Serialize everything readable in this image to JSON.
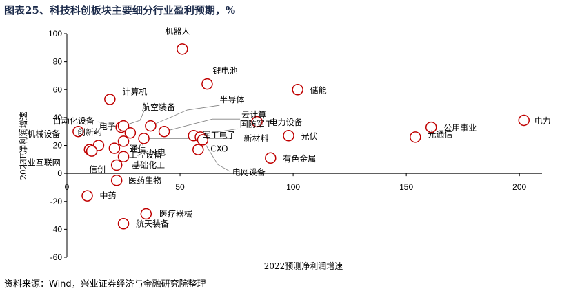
{
  "header": {
    "title": "图表25、科技科创板块主要细分行业盈利预期，%"
  },
  "footer": {
    "source": "资料来源：Wind，兴业证券经济与金融研究院整理"
  },
  "chart_data": {
    "type": "scatter",
    "title": "",
    "xlabel": "2022预测净利润增速",
    "ylabel": "2023E净利润增速",
    "xlim": [
      0,
      210
    ],
    "ylim": [
      -60,
      100
    ],
    "xticks": [
      0,
      50,
      100,
      150,
      200
    ],
    "yticks": [
      -60,
      -40,
      -20,
      0,
      20,
      40,
      60,
      80,
      100
    ],
    "grid": false,
    "marker_color": "#c00000",
    "points": [
      {
        "label": "机器人",
        "x": 51,
        "y": 89
      },
      {
        "label": "锂电池",
        "x": 62,
        "y": 64
      },
      {
        "label": "储能",
        "x": 102,
        "y": 60
      },
      {
        "label": "计算机",
        "x": 19,
        "y": 53
      },
      {
        "label": "电力",
        "x": 202,
        "y": 38
      },
      {
        "label": "电力设备",
        "x": 84,
        "y": 37
      },
      {
        "label": "公用事业",
        "x": 161,
        "y": 33
      },
      {
        "label": "光通信",
        "x": 154,
        "y": 26
      },
      {
        "label": "光伏",
        "x": 98,
        "y": 27
      },
      {
        "label": "自动化设备",
        "x": 24,
        "y": 33
      },
      {
        "label": "航空装备",
        "x": 25,
        "y": 34
      },
      {
        "label": "半导体",
        "x": 37,
        "y": 34
      },
      {
        "label": "云计算",
        "x": 43,
        "y": 30
      },
      {
        "label": "国防军工",
        "x": 56,
        "y": 27
      },
      {
        "label": "军工电子",
        "x": 59,
        "y": 26
      },
      {
        "label": "电子",
        "x": 28,
        "y": 29
      },
      {
        "label": "新材料",
        "x": 34,
        "y": 25
      },
      {
        "label": "机械设备",
        "x": 5,
        "y": 30
      },
      {
        "label": "创新药",
        "x": 14,
        "y": 20
      },
      {
        "label": "风电",
        "x": 25,
        "y": 23
      },
      {
        "label": "CXO",
        "x": 58,
        "y": 17
      },
      {
        "label": "通信",
        "x": 21,
        "y": 18
      },
      {
        "label": "工业互联网",
        "x": 10,
        "y": 17
      },
      {
        "label": "工控设备",
        "x": 25,
        "y": 12
      },
      {
        "label": "有色金属",
        "x": 90,
        "y": 11
      },
      {
        "label": "基础化工",
        "x": 22,
        "y": 6
      },
      {
        "label": "信创",
        "x": 11,
        "y": 16
      },
      {
        "label": "电网设备",
        "x": 60,
        "y": 24
      },
      {
        "label": "医药生物",
        "x": 22,
        "y": -5
      },
      {
        "label": "中药",
        "x": 9,
        "y": -16
      },
      {
        "label": "医疗器械",
        "x": 35,
        "y": -29
      },
      {
        "label": "航天装备",
        "x": 25,
        "y": -36
      }
    ]
  }
}
